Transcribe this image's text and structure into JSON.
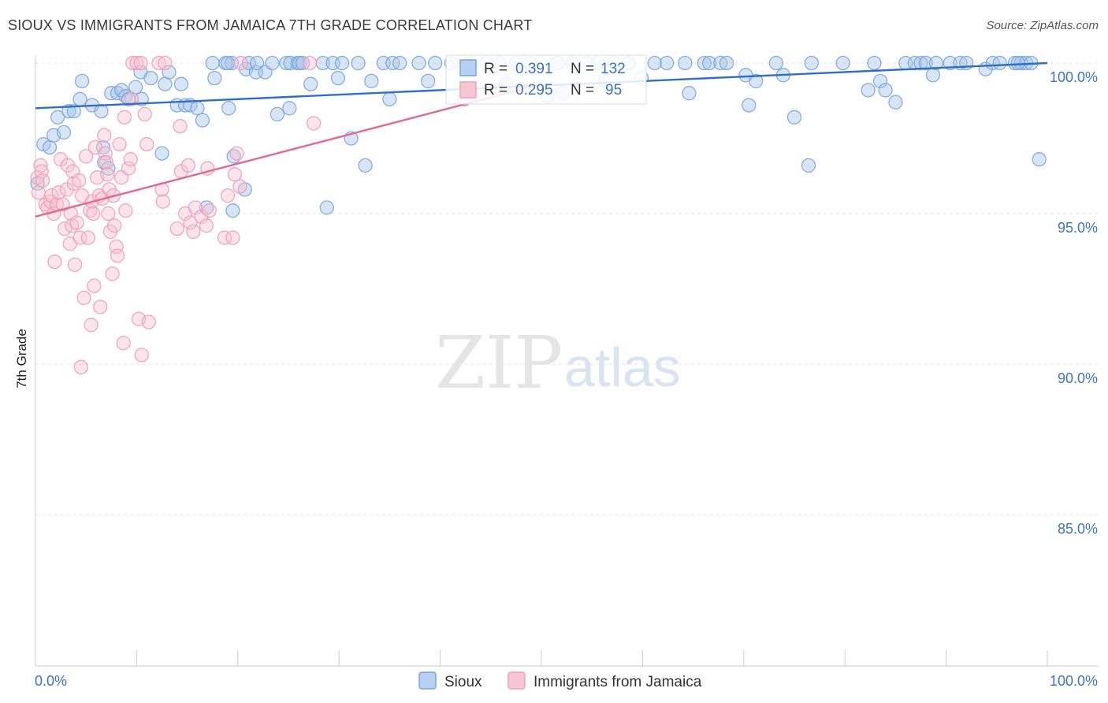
{
  "title": "SIOUX VS IMMIGRANTS FROM JAMAICA 7TH GRADE CORRELATION CHART",
  "source": "Source: ZipAtlas.com",
  "colors": {
    "sioux": "#7aa6dc",
    "sioux_line": "#2f6fc6",
    "jamaica": "#f0a3bb",
    "jamaica_line": "#e26a92",
    "tick": "#3b73c4"
  },
  "legend": {
    "r_label": "R =",
    "n_label": "N =",
    "sioux_r": "0.391",
    "sioux_n": "132",
    "jamaica_r": "0.295",
    "jamaica_n": "95"
  },
  "watermark": {
    "zip": "ZIP",
    "atlas": "atlas"
  },
  "chart_data": {
    "type": "scatter",
    "title": "SIOUX VS IMMIGRANTS FROM JAMAICA 7TH GRADE CORRELATION CHART",
    "xlabel": "",
    "ylabel": "7th Grade",
    "xlim": [
      0,
      100
    ],
    "ylim": [
      80.0,
      100.6
    ],
    "x_tick_labels": [
      "0.0%",
      "100.0%"
    ],
    "y_ticks": [
      100,
      95,
      90,
      85
    ],
    "y_tick_labels": [
      "100.0%",
      "95.0%",
      "90.0%",
      "85.0%"
    ],
    "grid": true,
    "legend_position": "top-center",
    "series": [
      {
        "name": "Sioux",
        "trend": {
          "x": [
            0,
            100
          ],
          "y": [
            98.5,
            100.0
          ]
        },
        "points": [
          [
            0.2,
            96.0
          ],
          [
            0.8,
            97.3
          ],
          [
            1.4,
            97.2
          ],
          [
            1.8,
            97.6
          ],
          [
            2.2,
            98.2
          ],
          [
            2.8,
            97.7
          ],
          [
            3.3,
            98.4
          ],
          [
            3.8,
            98.4
          ],
          [
            4.4,
            98.8
          ],
          [
            4.6,
            99.4
          ],
          [
            5.6,
            98.6
          ],
          [
            6.5,
            98.4
          ],
          [
            6.7,
            97.2
          ],
          [
            6.8,
            96.7
          ],
          [
            7.2,
            96.5
          ],
          [
            7.5,
            99.0
          ],
          [
            8.1,
            99.0
          ],
          [
            8.5,
            99.1
          ],
          [
            8.9,
            98.9
          ],
          [
            9.2,
            98.8
          ],
          [
            9.9,
            99.2
          ],
          [
            10.5,
            98.8
          ],
          [
            10.4,
            99.7
          ],
          [
            11.4,
            99.5
          ],
          [
            12.5,
            97.0
          ],
          [
            12.8,
            99.3
          ],
          [
            13.2,
            99.7
          ],
          [
            14.0,
            98.6
          ],
          [
            14.4,
            99.3
          ],
          [
            14.8,
            98.6
          ],
          [
            15.3,
            98.6
          ],
          [
            16.0,
            98.5
          ],
          [
            16.9,
            95.2
          ],
          [
            16.5,
            98.1
          ],
          [
            17.5,
            100.0
          ],
          [
            17.7,
            99.5
          ],
          [
            18.8,
            100.0
          ],
          [
            19.1,
            98.5
          ],
          [
            19.4,
            100.0
          ],
          [
            19.0,
            100.0
          ],
          [
            19.5,
            95.1
          ],
          [
            19.6,
            96.9
          ],
          [
            20.7,
            95.8
          ],
          [
            20.8,
            99.8
          ],
          [
            21.1,
            100.0
          ],
          [
            21.8,
            99.7
          ],
          [
            21.9,
            100.0
          ],
          [
            22.7,
            99.7
          ],
          [
            23.4,
            100.0
          ],
          [
            23.9,
            98.3
          ],
          [
            24.8,
            100.0
          ],
          [
            25.1,
            98.5
          ],
          [
            25.2,
            100.0
          ],
          [
            25.9,
            100.0
          ],
          [
            26.1,
            100.0
          ],
          [
            26.4,
            100.0
          ],
          [
            27.2,
            99.3
          ],
          [
            28.4,
            100.0
          ],
          [
            28.8,
            95.2
          ],
          [
            29.4,
            100.0
          ],
          [
            29.9,
            99.5
          ],
          [
            30.3,
            100.0
          ],
          [
            31.2,
            97.5
          ],
          [
            31.9,
            100.0
          ],
          [
            32.6,
            96.6
          ],
          [
            33.2,
            99.4
          ],
          [
            34.4,
            100.0
          ],
          [
            35.0,
            98.8
          ],
          [
            35.3,
            100.0
          ],
          [
            36.0,
            100.0
          ],
          [
            37.9,
            100.0
          ],
          [
            38.8,
            99.4
          ],
          [
            39.5,
            100.0
          ],
          [
            41.1,
            100.0
          ],
          [
            42.4,
            98.8
          ],
          [
            42.8,
            99.0
          ],
          [
            43.0,
            100.0
          ],
          [
            44.6,
            100.0
          ],
          [
            45.8,
            100.0
          ],
          [
            46.5,
            99.3
          ],
          [
            47.5,
            100.0
          ],
          [
            48.9,
            100.0
          ],
          [
            50.6,
            98.9
          ],
          [
            51.6,
            100.0
          ],
          [
            52.1,
            99.0
          ],
          [
            53.1,
            100.0
          ],
          [
            54.5,
            100.0
          ],
          [
            55.5,
            100.0
          ],
          [
            56.3,
            99.4
          ],
          [
            57.2,
            100.0
          ],
          [
            58.6,
            100.0
          ],
          [
            59.9,
            99.5
          ],
          [
            61.2,
            100.0
          ],
          [
            62.4,
            100.0
          ],
          [
            64.2,
            100.0
          ],
          [
            64.6,
            99.0
          ],
          [
            66.1,
            100.0
          ],
          [
            66.6,
            100.0
          ],
          [
            67.7,
            100.0
          ],
          [
            68.3,
            100.0
          ],
          [
            70.2,
            99.6
          ],
          [
            70.5,
            98.6
          ],
          [
            71.2,
            99.4
          ],
          [
            73.2,
            100.0
          ],
          [
            73.9,
            99.6
          ],
          [
            75.0,
            98.2
          ],
          [
            76.4,
            96.6
          ],
          [
            76.7,
            100.0
          ],
          [
            79.8,
            100.0
          ],
          [
            82.3,
            99.1
          ],
          [
            82.9,
            100.0
          ],
          [
            83.5,
            99.4
          ],
          [
            84.0,
            99.1
          ],
          [
            85.0,
            98.7
          ],
          [
            86.0,
            100.0
          ],
          [
            86.9,
            100.0
          ],
          [
            87.5,
            100.0
          ],
          [
            88.0,
            100.0
          ],
          [
            88.7,
            99.6
          ],
          [
            89.0,
            100.0
          ],
          [
            90.4,
            100.0
          ],
          [
            91.4,
            100.0
          ],
          [
            92.0,
            100.0
          ],
          [
            93.9,
            99.8
          ],
          [
            94.6,
            100.0
          ],
          [
            95.3,
            100.0
          ],
          [
            96.8,
            100.0
          ],
          [
            97.4,
            100.0
          ],
          [
            97.9,
            100.0
          ],
          [
            98.4,
            100.0
          ],
          [
            99.2,
            96.8
          ],
          [
            97.1,
            100.0
          ]
        ]
      },
      {
        "name": "Immigrants from Jamaica",
        "trend": {
          "x": [
            0,
            50
          ],
          "y": [
            94.9,
            99.3
          ]
        },
        "points": [
          [
            0.2,
            96.2
          ],
          [
            0.3,
            95.7
          ],
          [
            0.5,
            96.6
          ],
          [
            0.6,
            96.4
          ],
          [
            0.7,
            96.1
          ],
          [
            1.0,
            95.3
          ],
          [
            1.2,
            95.2
          ],
          [
            1.5,
            95.4
          ],
          [
            1.6,
            95.6
          ],
          [
            1.8,
            95.0
          ],
          [
            1.9,
            93.4
          ],
          [
            2.1,
            95.3
          ],
          [
            2.3,
            95.7
          ],
          [
            2.5,
            96.8
          ],
          [
            2.7,
            95.3
          ],
          [
            2.9,
            94.5
          ],
          [
            3.1,
            95.8
          ],
          [
            3.2,
            96.6
          ],
          [
            3.4,
            94.0
          ],
          [
            3.5,
            95.0
          ],
          [
            3.6,
            94.6
          ],
          [
            3.7,
            96.4
          ],
          [
            3.8,
            96.0
          ],
          [
            3.9,
            93.3
          ],
          [
            4.1,
            94.7
          ],
          [
            4.3,
            96.1
          ],
          [
            4.4,
            94.2
          ],
          [
            4.5,
            89.9
          ],
          [
            4.6,
            95.6
          ],
          [
            4.8,
            92.2
          ],
          [
            5.0,
            96.9
          ],
          [
            5.2,
            94.2
          ],
          [
            5.4,
            95.1
          ],
          [
            5.5,
            91.3
          ],
          [
            5.6,
            95.4
          ],
          [
            5.7,
            95.0
          ],
          [
            5.8,
            92.6
          ],
          [
            5.9,
            97.2
          ],
          [
            6.1,
            96.2
          ],
          [
            6.3,
            95.6
          ],
          [
            6.4,
            91.9
          ],
          [
            6.6,
            95.5
          ],
          [
            6.8,
            97.6
          ],
          [
            6.9,
            97.0
          ],
          [
            7.0,
            96.7
          ],
          [
            7.2,
            95.0
          ],
          [
            7.3,
            95.8
          ],
          [
            7.4,
            94.4
          ],
          [
            7.6,
            93.0
          ],
          [
            7.7,
            95.6
          ],
          [
            7.8,
            94.6
          ],
          [
            8.0,
            93.9
          ],
          [
            8.1,
            93.6
          ],
          [
            8.3,
            97.3
          ],
          [
            8.5,
            96.2
          ],
          [
            8.7,
            90.7
          ],
          [
            8.8,
            98.2
          ],
          [
            8.9,
            95.1
          ],
          [
            9.2,
            96.5
          ],
          [
            9.4,
            96.8
          ],
          [
            9.5,
            98.8
          ],
          [
            9.6,
            100.0
          ],
          [
            10.0,
            100.0
          ],
          [
            10.2,
            91.5
          ],
          [
            10.4,
            100.0
          ],
          [
            10.5,
            90.3
          ],
          [
            10.8,
            98.3
          ],
          [
            11.0,
            97.3
          ],
          [
            11.2,
            91.4
          ],
          [
            12.2,
            100.0
          ],
          [
            12.5,
            95.8
          ],
          [
            12.6,
            95.4
          ],
          [
            12.8,
            100.0
          ],
          [
            14.0,
            94.5
          ],
          [
            14.3,
            97.9
          ],
          [
            14.4,
            96.4
          ],
          [
            14.8,
            95.0
          ],
          [
            15.1,
            96.6
          ],
          [
            15.3,
            94.7
          ],
          [
            15.6,
            94.4
          ],
          [
            15.8,
            95.2
          ],
          [
            16.4,
            94.9
          ],
          [
            16.9,
            94.6
          ],
          [
            17.0,
            96.5
          ],
          [
            17.2,
            95.1
          ],
          [
            18.7,
            94.2
          ],
          [
            19.0,
            95.6
          ],
          [
            19.5,
            94.2
          ],
          [
            19.7,
            96.3
          ],
          [
            19.9,
            97.0
          ],
          [
            20.2,
            95.9
          ],
          [
            20.3,
            100.0
          ],
          [
            27.1,
            100.0
          ],
          [
            27.5,
            98.0
          ],
          [
            7.1,
            96.3
          ]
        ]
      }
    ]
  }
}
